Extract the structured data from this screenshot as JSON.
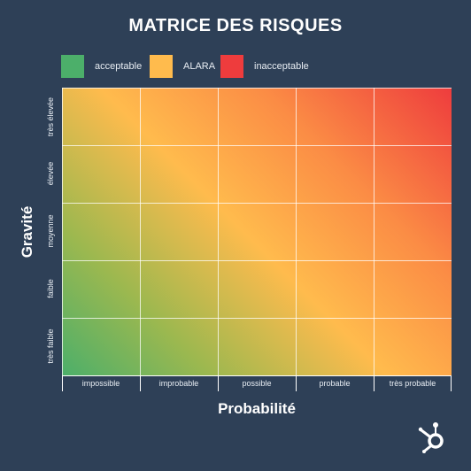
{
  "chart_data": {
    "type": "heatmap",
    "title": "MATRICE DES RISQUES",
    "xlabel": "Probabilité",
    "ylabel": "Gravité",
    "x_categories": [
      "impossible",
      "improbable",
      "possible",
      "probable",
      "très probable"
    ],
    "y_categories": [
      "très faible",
      "faible",
      "moyenne",
      "élevée",
      "très élevée"
    ],
    "legend": [
      {
        "label": "acceptable",
        "color": "#4caf6a"
      },
      {
        "label": "ALARA",
        "color": "#ffbb4d"
      },
      {
        "label": "inacceptable",
        "color": "#ee3c3d"
      }
    ],
    "legend_position": "top",
    "grid": true
  }
}
